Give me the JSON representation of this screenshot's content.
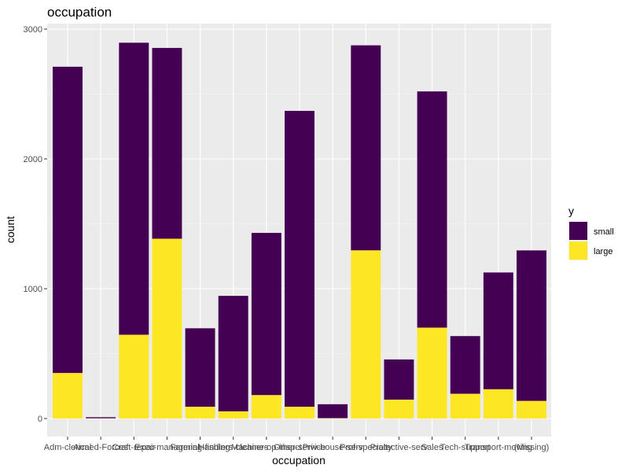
{
  "chart_data": {
    "type": "bar",
    "stacked": true,
    "title": "occupation",
    "xlabel": "occupation",
    "ylabel": "count",
    "ylim": [
      0,
      3000
    ],
    "yticks": [
      0,
      1000,
      2000,
      3000
    ],
    "grid": true,
    "legend": {
      "title": "y",
      "placement": "right"
    },
    "categories": [
      "Adm-clerical",
      "Armed-Forces",
      "Craft-repair",
      "Exec-managerial",
      "Farming-fishing",
      "Handlers-cleaners",
      "Machine-op-inspct",
      "Other-service",
      "Priv-house-serv",
      "Prof-specialty",
      "Protective-serv",
      "Sales",
      "Tech-support",
      "Transport-moving",
      "(Missing)"
    ],
    "series": [
      {
        "name": "small",
        "color": "#440154",
        "values": [
          2360,
          9,
          2250,
          1470,
          605,
          890,
          1250,
          2280,
          108,
          1580,
          310,
          1820,
          445,
          900,
          1160
        ]
      },
      {
        "name": "large",
        "color": "#fde725",
        "values": [
          350,
          1,
          645,
          1385,
          90,
          55,
          180,
          90,
          2,
          1295,
          145,
          700,
          190,
          225,
          135
        ]
      }
    ]
  }
}
